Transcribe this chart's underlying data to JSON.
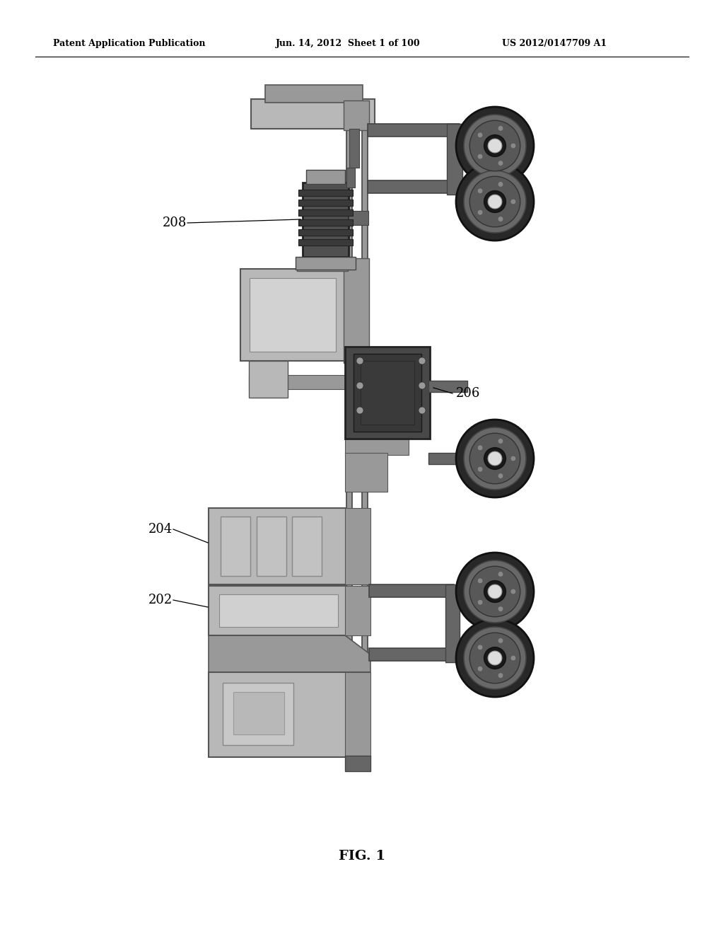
{
  "header_left": "Patent Application Publication",
  "header_center": "Jun. 14, 2012  Sheet 1 of 100",
  "header_right": "US 2012/0147709 A1",
  "figure_label": "FIG. 1",
  "bg_color": "#ffffff",
  "gray_light": "#b8b8b8",
  "gray_med": "#999999",
  "gray_dark": "#666666",
  "gray_darker": "#444444",
  "gray_darkest": "#333333",
  "black": "#111111",
  "frame_color": "#aaaaaa",
  "wheel_tire": "#2a2a2a",
  "wheel_rim": "#888888",
  "wheel_hub": "#222222",
  "wheel_center": "#cccccc"
}
